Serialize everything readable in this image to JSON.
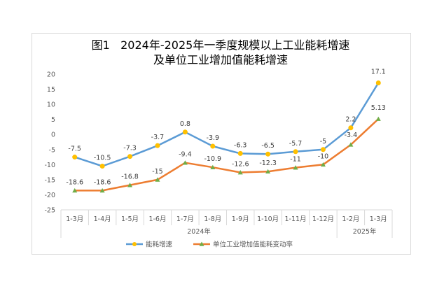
{
  "chart_data": {
    "type": "line",
    "title_lines": [
      "图1   2024年-2025年一季度规模以上工业能耗增速",
      "及单位工业增加值能耗增速"
    ],
    "categories": [
      "1-3月",
      "1-4月",
      "1-5月",
      "1-6月",
      "1-7月",
      "1-8月",
      "1-9月",
      "1-10月",
      "1-11月",
      "1-12月",
      "1-2月",
      "1-3月"
    ],
    "year_groups": [
      {
        "label": "2024年",
        "start": 0,
        "end": 9
      },
      {
        "label": "2025年",
        "start": 10,
        "end": 11
      }
    ],
    "y_ticks": [
      "20",
      "15",
      "10",
      "5",
      "0",
      "-5",
      "-10",
      "-15",
      "-20",
      "-25"
    ],
    "ylim": [
      -25,
      20
    ],
    "grid": false,
    "legend_position": "bottom",
    "series": [
      {
        "name": "能耗增速",
        "color": "#5b9bd5",
        "marker": "circle",
        "marker_color": "#ffc000",
        "values": [
          -7.5,
          -10.5,
          -7.3,
          -3.7,
          0.8,
          -3.9,
          -6.3,
          -6.5,
          -5.7,
          -5,
          2.2,
          17.1
        ],
        "labels": [
          "-7.5",
          "-10.5",
          "-7.3",
          "-3.7",
          "0.8",
          "-3.9",
          "-6.3",
          "-6.5",
          "-5.7",
          "-5",
          "2.2",
          "17.1"
        ]
      },
      {
        "name": "单位工业增加值能耗变动率",
        "color": "#ed7d31",
        "marker": "triangle",
        "marker_color": "#70ad47",
        "values": [
          -18.6,
          -18.6,
          -16.8,
          -15,
          -9.4,
          -10.9,
          -12.6,
          -12.3,
          -11,
          -10,
          -3.4,
          5.13
        ],
        "labels": [
          "-18.6",
          "-18.6",
          "-16.8",
          "-15",
          "-9.4",
          "-10.9",
          "-12.6",
          "-12.3",
          "-11",
          "-10",
          "-3.4",
          "5.13"
        ]
      }
    ]
  }
}
